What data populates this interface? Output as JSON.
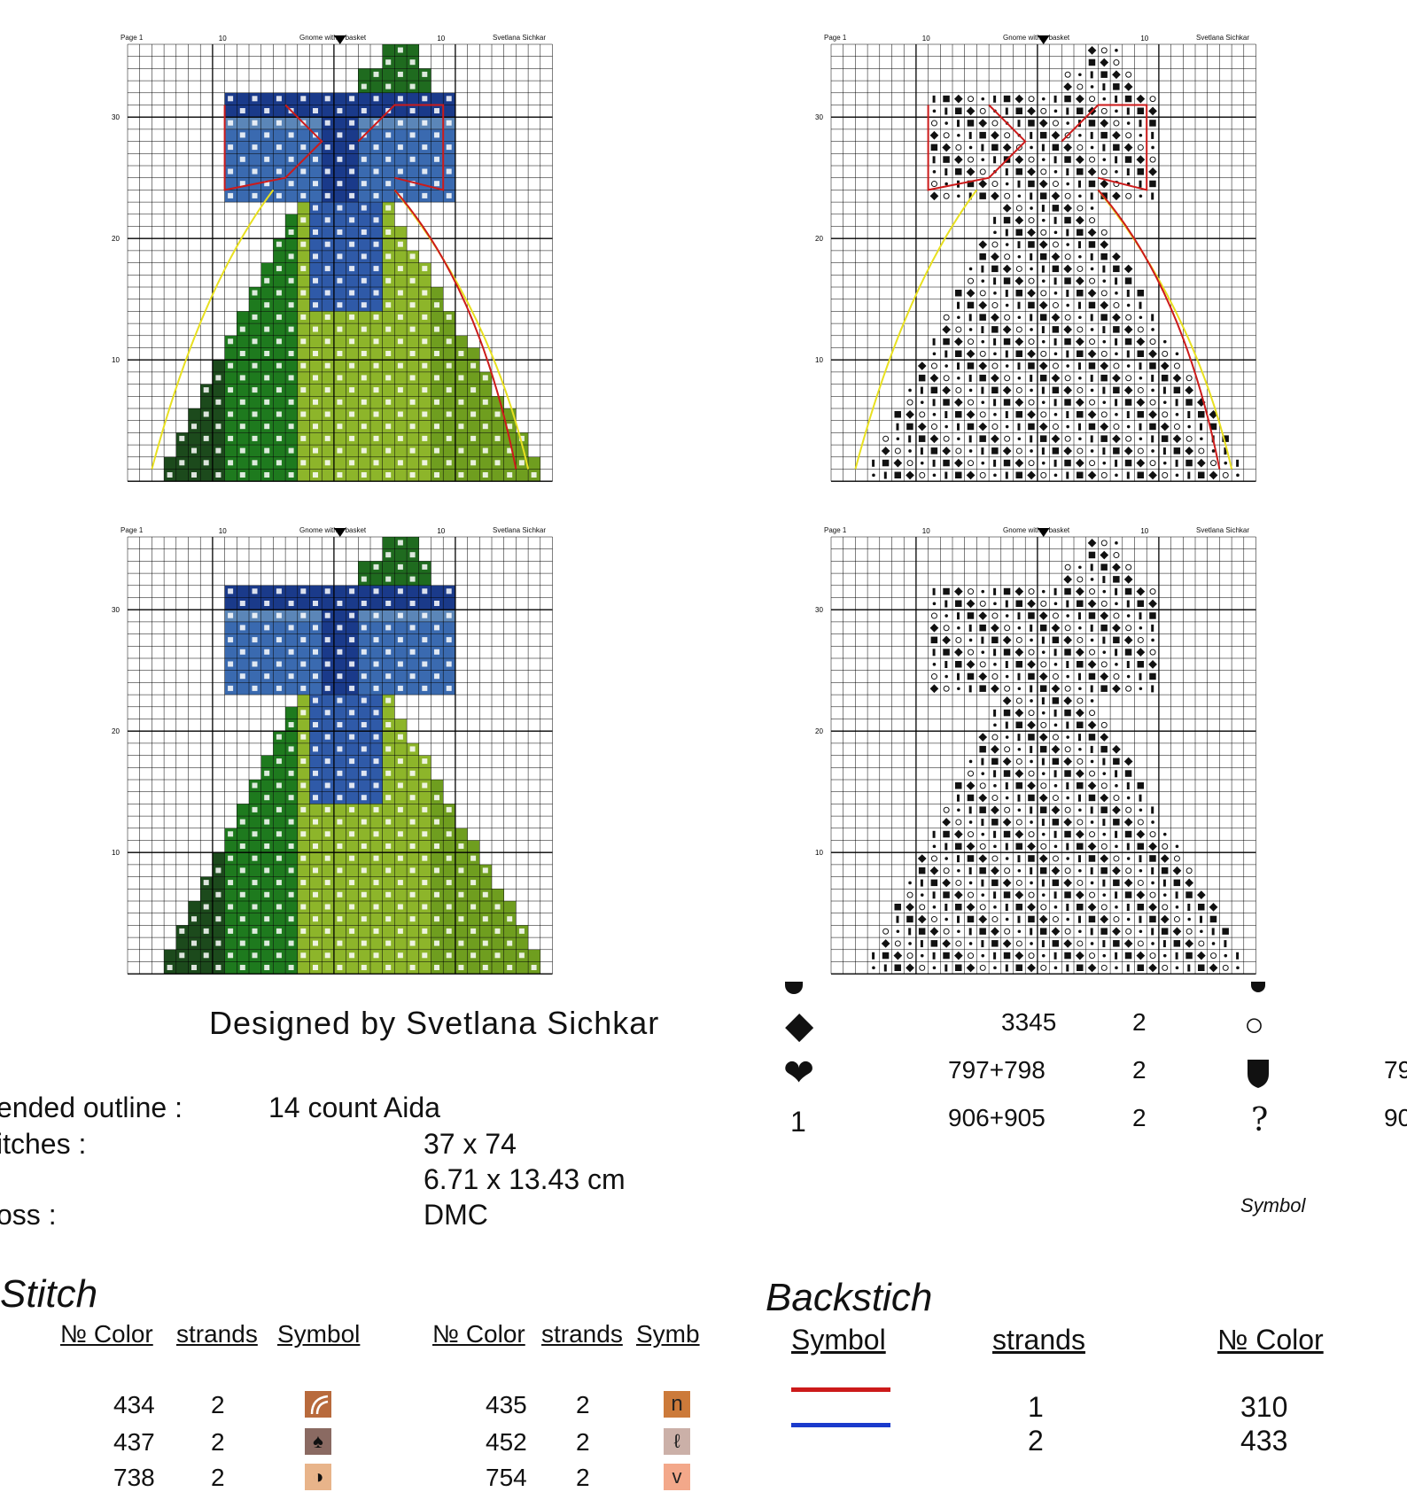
{
  "charts": [
    {
      "page": "Page 1",
      "title": "Gnome with a basket",
      "author": "Svetlana Sichkar",
      "tick_top_left": "10",
      "tick_top_right": "10",
      "tick_30": "30",
      "tick_20": "20",
      "tick_10": "10"
    },
    {
      "page": "Page 1",
      "title": "Gnome with a basket",
      "author": "Svetlana Sichkar",
      "tick_top_left": "10",
      "tick_top_right": "10",
      "tick_30": "30",
      "tick_20": "20",
      "tick_10": "10"
    },
    {
      "page": "Page 1",
      "title": "Gnome with a basket",
      "author": "Svetlana Sichkar",
      "tick_top_left": "10",
      "tick_top_right": "10",
      "tick_30": "30",
      "tick_20": "20",
      "tick_10": "10"
    },
    {
      "page": "Page 1",
      "title": "Gnome with a basket",
      "author": "Svetlana Sichkar",
      "tick_top_left": "10",
      "tick_top_right": "10",
      "tick_30": "30",
      "tick_20": "20",
      "tick_10": "10"
    }
  ],
  "designer": "Designed by Svetlana Sichkar",
  "info": {
    "outline_label": "ended outline :",
    "outline_value": "14 count Aida",
    "stitches_label": "itches :",
    "stitches_value": "37 x 74",
    "size_value": "6.71 x 13.43 cm",
    "floss_label": "oss :",
    "floss_value": "DMC"
  },
  "key_top": {
    "rows": [
      {
        "icon": "diamond-icon",
        "glyph": "◆",
        "color": "3345",
        "strands": "2",
        "sym2": "○",
        "extra": ""
      },
      {
        "icon": "heart-icon",
        "glyph": "❤",
        "color": "797+798",
        "strands": "2",
        "sym2": "shield",
        "extra": "79"
      },
      {
        "icon": "one-icon",
        "glyph": "1",
        "color": "906+905",
        "strands": "2",
        "sym2": "?",
        "extra": "90"
      }
    ],
    "symbol_label": "Symbol"
  },
  "cross_stitch": {
    "title": "Stitch",
    "headers_left": {
      "color": "№ Color",
      "strands": "strands",
      "symbol": "Symbol"
    },
    "headers_right": {
      "color": "№ Color",
      "strands": "strands",
      "symbol": "Symb"
    },
    "rows": [
      {
        "c1": "434",
        "s1": "2",
        "c2": "435",
        "s2": "2",
        "col1": "#b86a3c",
        "col2": "#cc7a3a",
        "g2": "n"
      },
      {
        "c1": "437",
        "s1": "2",
        "c2": "452",
        "s2": "2",
        "col1": "#8a6a62",
        "col2": "#cbb0a8",
        "g2": "ℓ"
      },
      {
        "c1": "738",
        "s1": "2",
        "c2": "754",
        "s2": "2",
        "col1": "#e8b48a",
        "col2": "#f3a88a",
        "g2": "v"
      }
    ]
  },
  "backstitch": {
    "title": "Backstich",
    "headers": {
      "symbol": "Symbol",
      "strands": "strands",
      "color": "№ Color"
    },
    "rows": [
      {
        "strands": "1",
        "color": "310",
        "line": "#cc1a1a"
      },
      {
        "strands": "2",
        "color": "433",
        "line": "#1a3acc"
      }
    ]
  }
}
